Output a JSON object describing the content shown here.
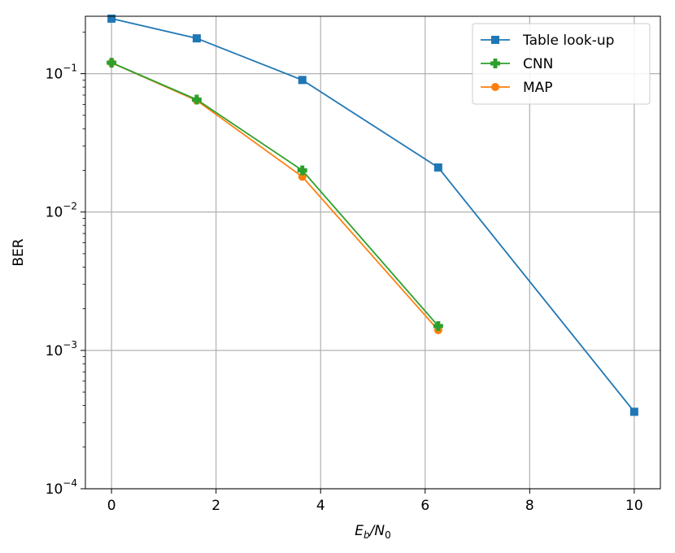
{
  "chart_data": {
    "type": "line",
    "title": "",
    "xlabel_main": "E",
    "xlabel_sub1": "b",
    "xlabel_sep": "/N",
    "xlabel_sub2": "0",
    "ylabel": "BER",
    "xscale": "linear",
    "yscale": "log",
    "xlim": [
      -0.5,
      10.5
    ],
    "ylim": [
      0.0001,
      0.26
    ],
    "xticks": [
      0,
      2,
      4,
      6,
      8,
      10
    ],
    "xtick_labels": [
      "0",
      "2",
      "4",
      "6",
      "8",
      "10"
    ],
    "yticks": [
      0.1,
      0.01,
      0.001,
      0.0001
    ],
    "ytick_labels": [
      {
        "base": "10",
        "exp": "−1"
      },
      {
        "base": "10",
        "exp": "−2"
      },
      {
        "base": "10",
        "exp": "−3"
      },
      {
        "base": "10",
        "exp": "−4"
      }
    ],
    "grid": true,
    "legend_position": "top-right",
    "series": [
      {
        "name": "Table look-up",
        "color": "#1f77b4",
        "marker": "square",
        "x": [
          0,
          1.63,
          3.65,
          6.25,
          10
        ],
        "y": [
          0.25,
          0.18,
          0.09,
          0.021,
          0.00036
        ]
      },
      {
        "name": "CNN",
        "color": "#2ca02c",
        "marker": "plus",
        "x": [
          0,
          1.63,
          3.65,
          6.25
        ],
        "y": [
          0.12,
          0.065,
          0.02,
          0.0015
        ]
      },
      {
        "name": "MAP",
        "color": "#ff7f0e",
        "marker": "circle",
        "x": [
          0,
          1.63,
          3.65,
          6.25
        ],
        "y": [
          0.12,
          0.064,
          0.018,
          0.0014
        ]
      }
    ]
  }
}
